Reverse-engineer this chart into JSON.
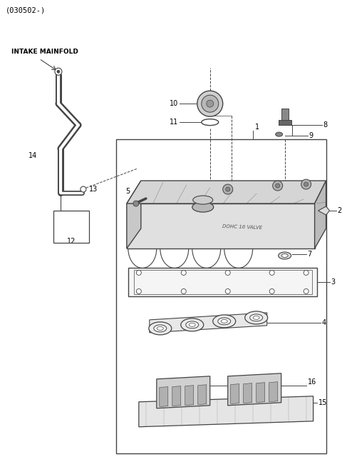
{
  "title": "(030502-)",
  "bg_color": "#ffffff",
  "lc": "#444444",
  "label_color": "#000000",
  "fig_width": 4.8,
  "fig_height": 6.54,
  "dpi": 100,
  "intake_label": "INTAKE MAINFOLD"
}
